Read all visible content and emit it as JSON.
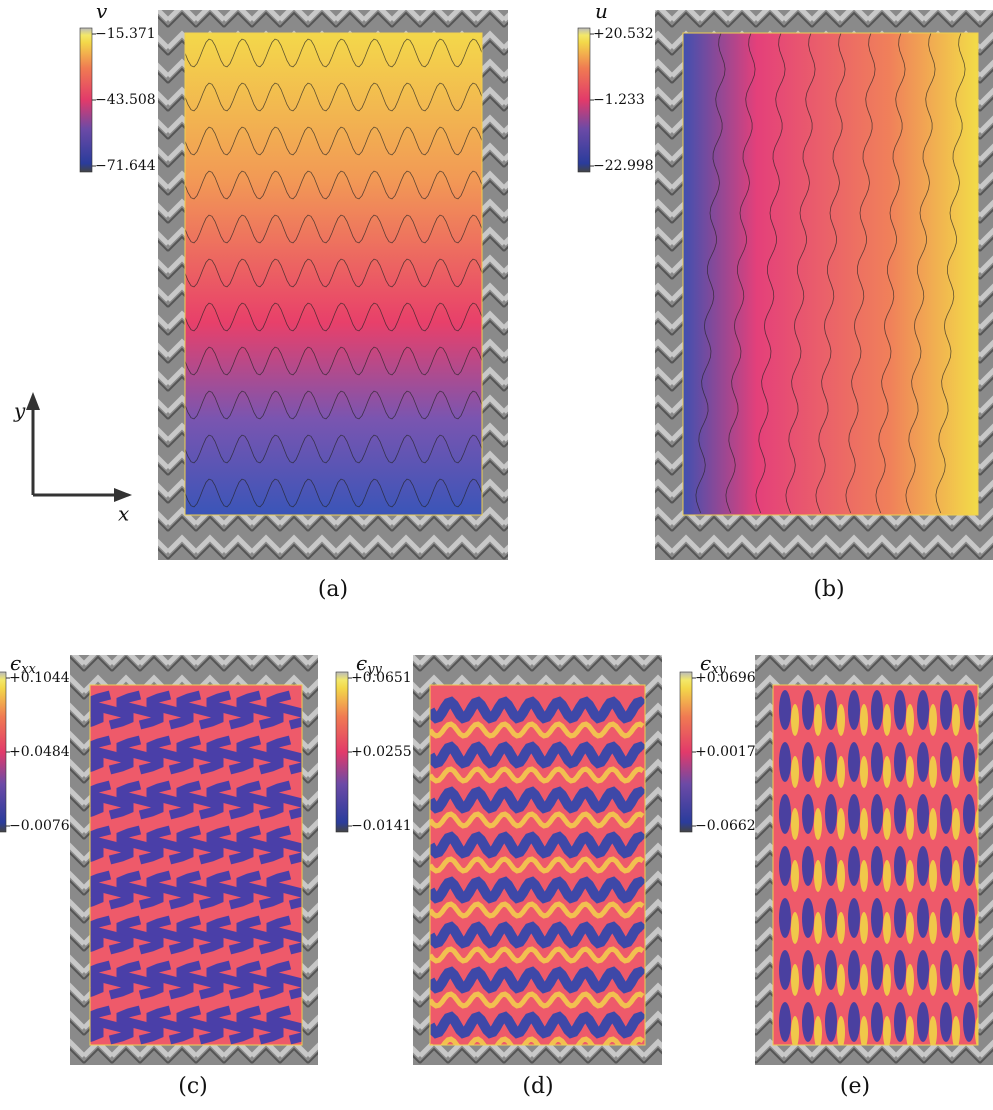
{
  "axes": {
    "y": "y",
    "x": "x"
  },
  "panels": [
    {
      "caption": "(a)",
      "colorbar": {
        "symbol": "v",
        "ticks": [
          "−15.371",
          "−43.508",
          "−71.644"
        ]
      }
    },
    {
      "caption": "(b)",
      "colorbar": {
        "symbol": "u",
        "ticks": [
          "+20.532",
          "−1.233",
          "−22.998"
        ]
      }
    },
    {
      "caption": "(c)",
      "colorbar": {
        "symbol": "ϵ",
        "subscript": "xx",
        "ticks": [
          "+0.1044",
          "+0.0484",
          "−0.0076"
        ]
      }
    },
    {
      "caption": "(d)",
      "colorbar": {
        "symbol": "ϵ",
        "subscript": "yy",
        "ticks": [
          "+0.0651",
          "+0.0255",
          "−0.0141"
        ]
      }
    },
    {
      "caption": "(e)",
      "colorbar": {
        "symbol": "ϵ",
        "subscript": "xy",
        "ticks": [
          "+0.0696",
          "+0.0017",
          "−0.0662"
        ]
      }
    }
  ]
}
